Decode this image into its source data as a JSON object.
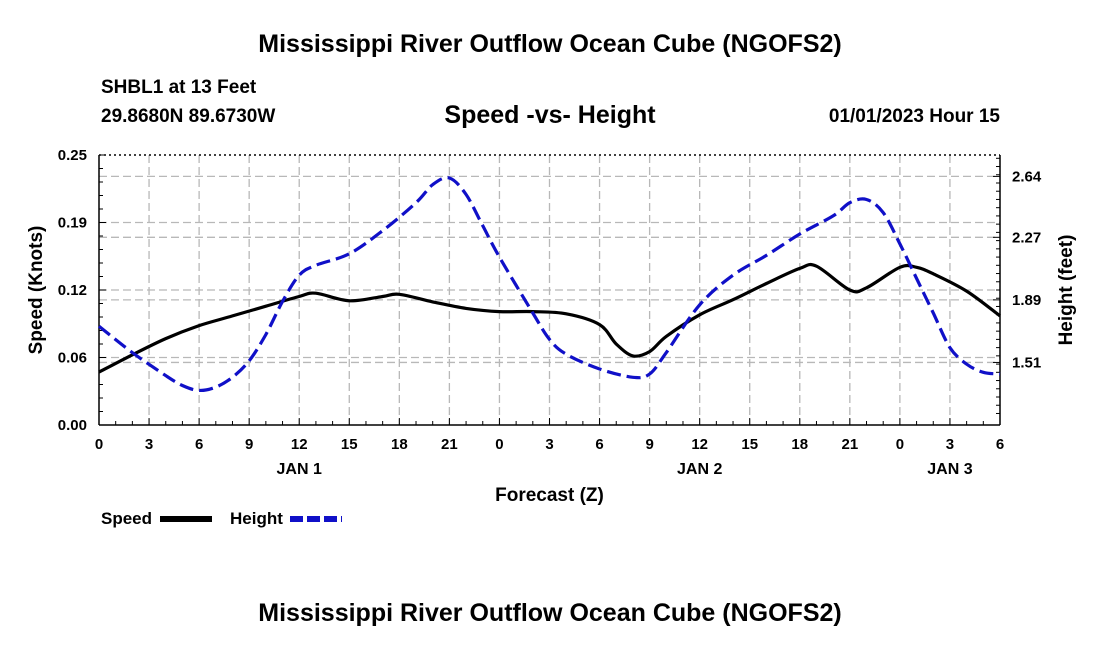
{
  "header": {
    "title": "Mississippi River Outflow Ocean Cube (NGOFS2)",
    "station": "SHBL1 at 13 Feet",
    "coords": "29.8680N  89.6730W",
    "datetime": "01/01/2023 Hour 15",
    "footer_title": "Mississippi River Outflow Ocean Cube (NGOFS2)"
  },
  "colors": {
    "speed": "#000000",
    "height": "#1010c8",
    "grid": "#b8b8b8"
  },
  "chart_data": {
    "type": "line",
    "title": "Speed -vs- Height",
    "xlabel": "Forecast (Z)",
    "ylabel_left": "Speed (Knots)",
    "ylabel_right": "Height (feet)",
    "x_range": [
      0,
      54
    ],
    "x_ticks": [
      {
        "x": 0,
        "label": "0"
      },
      {
        "x": 3,
        "label": "3"
      },
      {
        "x": 6,
        "label": "6"
      },
      {
        "x": 9,
        "label": "9"
      },
      {
        "x": 12,
        "label": "12"
      },
      {
        "x": 15,
        "label": "15"
      },
      {
        "x": 18,
        "label": "18"
      },
      {
        "x": 21,
        "label": "21"
      },
      {
        "x": 24,
        "label": "0"
      },
      {
        "x": 27,
        "label": "3"
      },
      {
        "x": 30,
        "label": "6"
      },
      {
        "x": 33,
        "label": "9"
      },
      {
        "x": 36,
        "label": "12"
      },
      {
        "x": 39,
        "label": "15"
      },
      {
        "x": 42,
        "label": "18"
      },
      {
        "x": 45,
        "label": "21"
      },
      {
        "x": 48,
        "label": "0"
      },
      {
        "x": 51,
        "label": "3"
      },
      {
        "x": 54,
        "label": "6"
      }
    ],
    "day_labels": [
      {
        "x": 12,
        "label": "JAN 1"
      },
      {
        "x": 36,
        "label": "JAN 2"
      },
      {
        "x": 51,
        "label": "JAN 3"
      }
    ],
    "y_left": {
      "min": 0,
      "max": 0.25,
      "ticks": [
        "0.00",
        "0.06",
        "0.12",
        "0.19",
        "0.25"
      ],
      "tick_values": [
        0,
        0.0625,
        0.125,
        0.1875,
        0.25
      ]
    },
    "y_right": {
      "min": 1.13,
      "max": 2.77,
      "ticks": [
        "1.51",
        "1.89",
        "2.27",
        "2.64"
      ],
      "tick_values": [
        1.51,
        1.89,
        2.27,
        2.64
      ]
    },
    "legend_position": "bottom-left",
    "series": [
      {
        "name": "Speed",
        "axis": "left",
        "style": "solid",
        "x": [
          0,
          2,
          4,
          6,
          8,
          10,
          12,
          13,
          15,
          17,
          18,
          20,
          22,
          24,
          26,
          28,
          30,
          31,
          32,
          33,
          34,
          36,
          38,
          40,
          42,
          43,
          45,
          46,
          48,
          49,
          50,
          52,
          54
        ],
        "values": [
          0.049,
          0.065,
          0.08,
          0.092,
          0.101,
          0.11,
          0.119,
          0.122,
          0.115,
          0.119,
          0.121,
          0.114,
          0.108,
          0.105,
          0.105,
          0.103,
          0.093,
          0.075,
          0.064,
          0.068,
          0.082,
          0.102,
          0.116,
          0.131,
          0.145,
          0.147,
          0.125,
          0.127,
          0.146,
          0.146,
          0.14,
          0.124,
          0.101
        ]
      },
      {
        "name": "Height",
        "axis": "right",
        "style": "dashed",
        "x": [
          0,
          2,
          4,
          5,
          6,
          7,
          8,
          9,
          10,
          11,
          12,
          13,
          15,
          17,
          19,
          20,
          21,
          22,
          23,
          24,
          26,
          27,
          28,
          30,
          32,
          33,
          34,
          36,
          38,
          40,
          42,
          44,
          45,
          46,
          47,
          48,
          49,
          50,
          51,
          52,
          53,
          54
        ],
        "values": [
          1.73,
          1.57,
          1.43,
          1.37,
          1.34,
          1.36,
          1.42,
          1.52,
          1.68,
          1.88,
          2.04,
          2.1,
          2.17,
          2.31,
          2.48,
          2.59,
          2.63,
          2.53,
          2.34,
          2.15,
          1.81,
          1.65,
          1.56,
          1.47,
          1.42,
          1.44,
          1.57,
          1.86,
          2.04,
          2.16,
          2.29,
          2.4,
          2.48,
          2.5,
          2.42,
          2.23,
          2.02,
          1.81,
          1.6,
          1.5,
          1.45,
          1.44
        ]
      }
    ]
  },
  "legend": {
    "speed_label": "Speed",
    "height_label": "Height"
  }
}
